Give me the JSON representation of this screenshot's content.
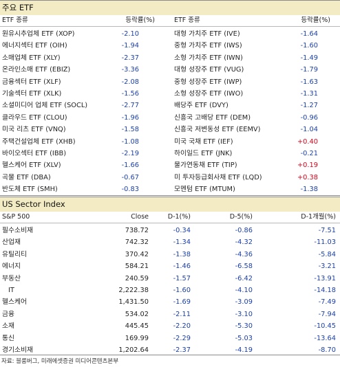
{
  "etf_section": {
    "title": "주요 ETF",
    "headers": {
      "col1": "ETF 종류",
      "col2": "등락률(%)",
      "col3": "ETF 종류",
      "col4": "등락률(%)"
    },
    "rows": [
      {
        "left_name": "원유시추업체 ETF (XOP)",
        "left_value": "-2.10",
        "right_name": "대형 가치주 ETF (IVE)",
        "right_value": "-1.64"
      },
      {
        "left_name": "에너지섹터 ETF (OIH)",
        "left_value": "-1.94",
        "right_name": "중형 가치주 ETF (IWS)",
        "right_value": "-1.60"
      },
      {
        "left_name": "소매업체 ETF (XLY)",
        "left_value": "-2.37",
        "right_name": "소형 가치주 ETF (IWN)",
        "right_value": "-1.49"
      },
      {
        "left_name": "온라인소매 ETF (EBIZ)",
        "left_value": "-3.36",
        "right_name": "대형 성장주 ETF (VUG)",
        "right_value": "-1.79"
      },
      {
        "left_name": "금융섹터 ETF (XLF)",
        "left_value": "-2.08",
        "right_name": "중형 성장주 ETF (IWP)",
        "right_value": "-1.63"
      },
      {
        "left_name": "기술섹터 ETF (XLK)",
        "left_value": "-1.56",
        "right_name": "소형 성장주 ETF (IWO)",
        "right_value": "-1.31"
      },
      {
        "left_name": "소셜미디어 업체 ETF (SOCL)",
        "left_value": "-2.77",
        "right_name": "배당주 ETF (DVY)",
        "right_value": "-1.27"
      },
      {
        "left_name": "클라우드 ETF (CLOU)",
        "left_value": "-1.96",
        "right_name": "신흥국 고배당 ETF (DEM)",
        "right_value": "-0.96"
      },
      {
        "left_name": "미국 리츠 ETF (VNQ)",
        "left_value": "-1.58",
        "right_name": "신흥국 저변동성 ETF (EEMV)",
        "right_value": "-1.04"
      },
      {
        "left_name": "주택건설업체 ETF (XHB)",
        "left_value": "-1.08",
        "right_name": "미국 국채 ETF (IEF)",
        "right_value": "+0.40"
      },
      {
        "left_name": "바이오섹터 ETF (IBB)",
        "left_value": "-2.19",
        "right_name": "하이일드 ETF (JNK)",
        "right_value": "-0.21"
      },
      {
        "left_name": "헬스케어 ETF (XLV)",
        "left_value": "-1.66",
        "right_name": "물가연동채 ETF (TIP)",
        "right_value": "+0.19"
      },
      {
        "left_name": "곡물 ETF (DBA)",
        "left_value": "-0.67",
        "right_name": "미 투자등급회사채 ETF (LQD)",
        "right_value": "+0.38"
      },
      {
        "left_name": "반도체 ETF (SMH)",
        "left_value": "-0.83",
        "right_name": "모멘텀 ETF (MTUM)",
        "right_value": "-1.38"
      }
    ]
  },
  "us_section": {
    "title": "US Sector Index",
    "headers": {
      "name": "S&P 500",
      "close": "Close",
      "d1": "D-1(%)",
      "d5": "D-5(%)",
      "m1": "D-1개월(%)"
    },
    "rows": [
      {
        "name": "필수소비재",
        "close": "738.72",
        "d1": "-0.34",
        "d5": "-0.86",
        "m1": "-7.51"
      },
      {
        "name": "산업재",
        "close": "742.32",
        "d1": "-1.34",
        "d5": "-4.32",
        "m1": "-11.03"
      },
      {
        "name": "유틸리티",
        "close": "370.42",
        "d1": "-1.38",
        "d5": "-4.36",
        "m1": "-5.84"
      },
      {
        "name": "에너지",
        "close": "584.21",
        "d1": "-1.46",
        "d5": "-6.58",
        "m1": "-3.21"
      },
      {
        "name": "부동산",
        "close": "240.59",
        "d1": "-1.57",
        "d5": "-6.42",
        "m1": "-13.91"
      },
      {
        "name": "IT",
        "close": "2,222.38",
        "d1": "-1.60",
        "d5": "-4.10",
        "m1": "-14.18"
      },
      {
        "name": "헬스케어",
        "close": "1,431.50",
        "d1": "-1.69",
        "d5": "-3.09",
        "m1": "-7.49"
      },
      {
        "name": "금융",
        "close": "534.02",
        "d1": "-2.11",
        "d5": "-3.10",
        "m1": "-7.94"
      },
      {
        "name": "소재",
        "close": "445.45",
        "d1": "-2.20",
        "d5": "-5.30",
        "m1": "-10.45"
      },
      {
        "name": "통신",
        "close": "169.99",
        "d1": "-2.29",
        "d5": "-5.03",
        "m1": "-13.64"
      },
      {
        "name": "경기소비재",
        "close": "1,202.64",
        "d1": "-2.37",
        "d5": "-4.19",
        "m1": "-8.70"
      }
    ]
  },
  "source": "자료: 블룸버그, 미래에셋증권 미디어콘텐츠본부",
  "colors": {
    "negative": "#1a3ea8",
    "positive": "#d0021b",
    "header_bg": "#f2ebc4"
  }
}
